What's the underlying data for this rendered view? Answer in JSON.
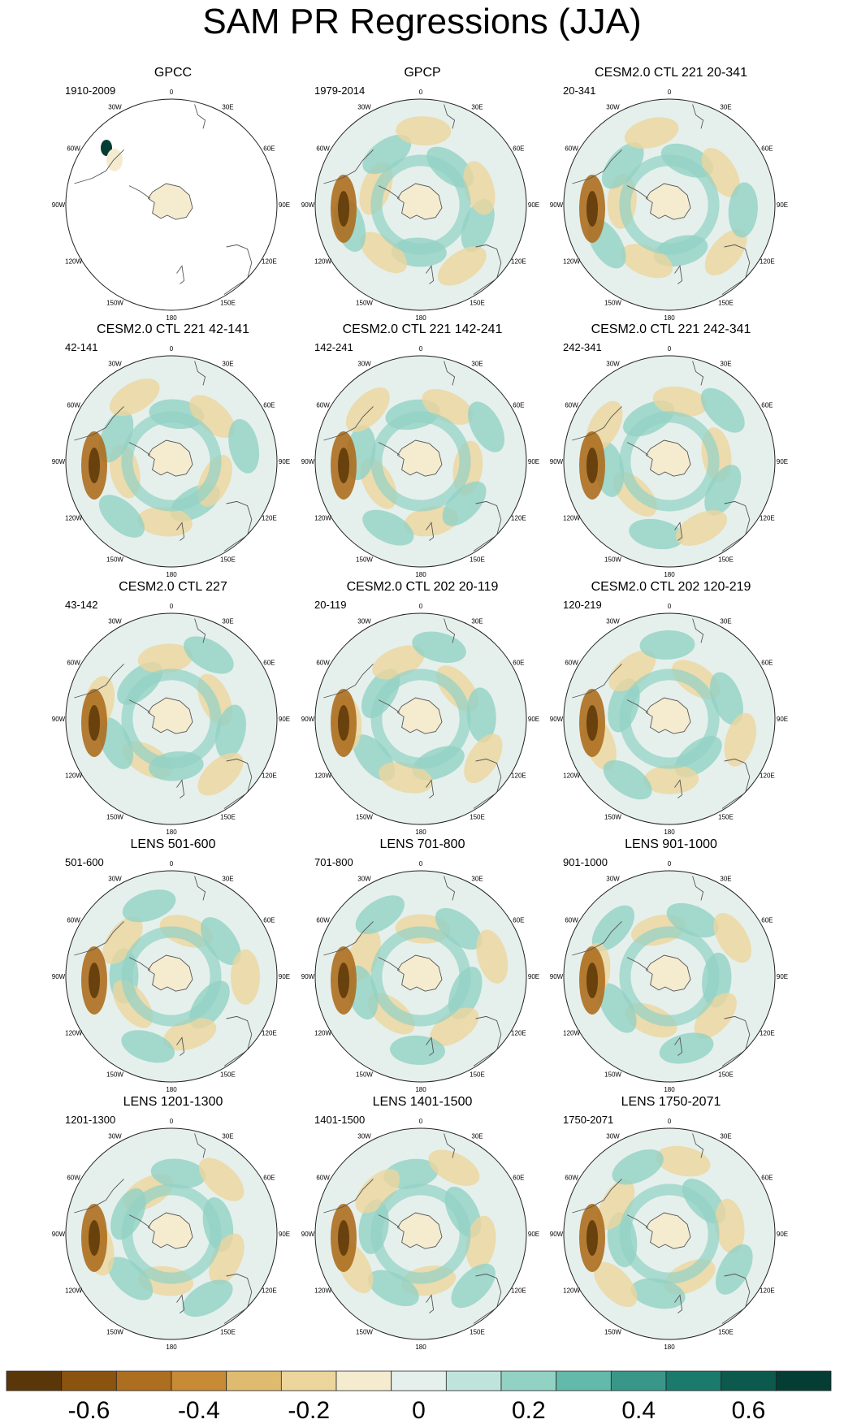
{
  "chart_data": {
    "type": "polar-stereographic contour maps (small multiples)",
    "title": "SAM PR Regressions (JJA)",
    "projection": "South Polar Stereographic",
    "longitude_labels": [
      "0",
      "30E",
      "60E",
      "90E",
      "120E",
      "150E",
      "180",
      "150W",
      "120W",
      "90W",
      "60W",
      "30W"
    ],
    "panels": [
      {
        "name": "GPCC",
        "period": "1910-2009",
        "coverage": "land"
      },
      {
        "name": "GPCP",
        "period": "1979-2014",
        "coverage": "full"
      },
      {
        "name": "CESM2.0 CTL 221 20-341",
        "period": "20-341",
        "coverage": "full"
      },
      {
        "name": "CESM2.0 CTL 221 42-141",
        "period": "42-141",
        "coverage": "full"
      },
      {
        "name": "CESM2.0 CTL 221 142-241",
        "period": "142-241",
        "coverage": "full"
      },
      {
        "name": "CESM2.0 CTL 221 242-341",
        "period": "242-341",
        "coverage": "full"
      },
      {
        "name": "CESM2.0 CTL 227",
        "period": "43-142",
        "coverage": "full"
      },
      {
        "name": "CESM2.0 CTL 202 20-119",
        "period": "20-119",
        "coverage": "full"
      },
      {
        "name": "CESM2.0 CTL 202 120-219",
        "period": "120-219",
        "coverage": "full"
      },
      {
        "name": "LENS 501-600",
        "period": "501-600",
        "coverage": "full"
      },
      {
        "name": "LENS 701-800",
        "period": "701-800",
        "coverage": "full"
      },
      {
        "name": "LENS 901-1000",
        "period": "901-1000",
        "coverage": "full"
      },
      {
        "name": "LENS 1201-1300",
        "period": "1201-1300",
        "coverage": "full"
      },
      {
        "name": "LENS 1401-1500",
        "period": "1401-1500",
        "coverage": "full"
      },
      {
        "name": "LENS 1750-2071",
        "period": "1750-2071",
        "coverage": "full"
      }
    ],
    "colorbar": {
      "levels": [
        -0.7,
        -0.6,
        -0.5,
        -0.4,
        -0.3,
        -0.2,
        -0.1,
        0,
        0.1,
        0.2,
        0.3,
        0.4,
        0.5,
        0.6,
        0.7
      ],
      "tick_labels": [
        "-0.6",
        "-0.4",
        "-0.2",
        "0",
        "0.2",
        "0.4",
        "0.6"
      ],
      "tick_values": [
        -0.6,
        -0.4,
        -0.2,
        0,
        0.2,
        0.4,
        0.6
      ],
      "colors": [
        "#5a3708",
        "#8a540f",
        "#ad6e1f",
        "#c78b36",
        "#dfbb6f",
        "#ecd69d",
        "#f5ecd0",
        "#e5f0ec",
        "#bfe4dc",
        "#92d2c5",
        "#63b9aa",
        "#39978a",
        "#1a7a6c",
        "#0c5a4e",
        "#043d34"
      ]
    }
  }
}
